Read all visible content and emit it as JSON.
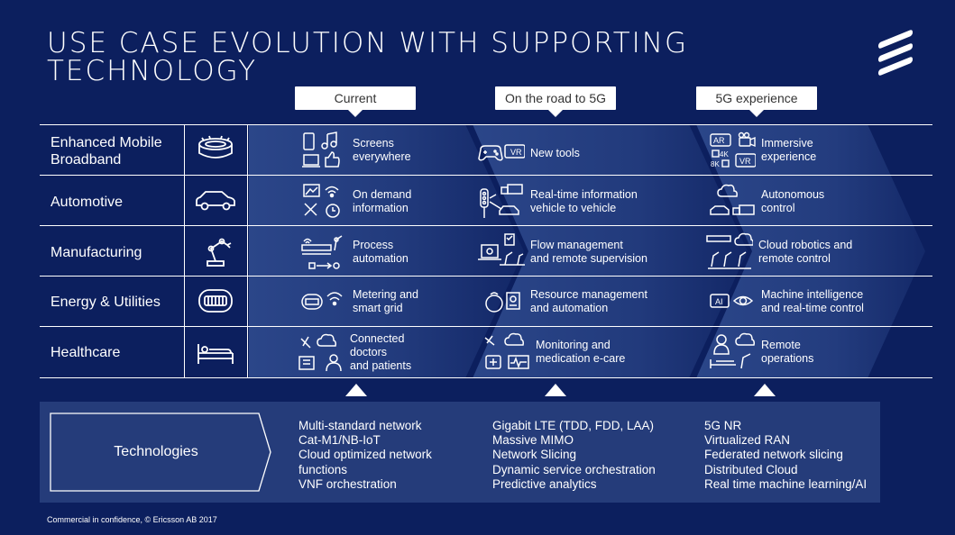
{
  "title_line1": "USE CASE EVOLUTION WITH SUPPORTING",
  "title_line2": "TECHNOLOGY",
  "phases": [
    "Current",
    "On the road to 5G",
    "5G experience"
  ],
  "rows": [
    {
      "label": "Enhanced Mobile\nBroadband",
      "icon": "stadium-icon",
      "cells": [
        {
          "text": "Screens\neverywhere",
          "icon": "devices-icon"
        },
        {
          "text": "New tools",
          "icon": "gamepad-vr-icon"
        },
        {
          "text": "Immersive\nexperience",
          "icon": "ar-4k-vr-icon",
          "badges": [
            "AR",
            "4K",
            "8K",
            "VR"
          ]
        }
      ]
    },
    {
      "label": "Automotive",
      "icon": "car-icon",
      "cells": [
        {
          "text": "On demand\ninformation",
          "icon": "map-wifi-tools-icon"
        },
        {
          "text": "Real-time information\nvehicle to vehicle",
          "icon": "traffic-vehicles-icon"
        },
        {
          "text": "Autonomous\ncontrol",
          "icon": "cloud-vehicles-icon"
        }
      ]
    },
    {
      "label": "Manufacturing",
      "icon": "robot-arm-icon",
      "cells": [
        {
          "text": "Process\nautomation",
          "icon": "conveyor-robot-icon"
        },
        {
          "text": "Flow management\nand remote supervision",
          "icon": "laptop-robots-icon"
        },
        {
          "text": "Cloud robotics and\nremote control",
          "icon": "cloud-robots-icon"
        }
      ]
    },
    {
      "label": "Energy & Utilities",
      "icon": "meter-icon",
      "cells": [
        {
          "text": "Metering and\nsmart grid",
          "icon": "meter-wifi-icon"
        },
        {
          "text": "Resource management\nand automation",
          "icon": "resource-icon"
        },
        {
          "text": "Machine intelligence\nand real-time control",
          "icon": "ai-eye-icon",
          "badges": [
            "AI"
          ]
        }
      ]
    },
    {
      "label": "Healthcare",
      "icon": "hospital-bed-icon",
      "cells": [
        {
          "text": "Connected\ndoctors\nand patients",
          "icon": "doctor-patient-icon"
        },
        {
          "text": "Monitoring and\nmedication e-care",
          "icon": "monitoring-icon"
        },
        {
          "text": "Remote\noperations",
          "icon": "remote-surgery-icon"
        }
      ]
    }
  ],
  "technologies_label": "Technologies",
  "tech_columns": [
    [
      "Multi-standard network",
      "Cat-M1/NB-IoT",
      "Cloud optimized network",
      "functions",
      "VNF orchestration"
    ],
    [
      "Gigabit LTE (TDD, FDD, LAA)",
      "Massive MIMO",
      "Network Slicing",
      "Dynamic service orchestration",
      "Predictive analytics"
    ],
    [
      "5G NR",
      "Virtualized RAN",
      "Federated network slicing",
      "Distributed Cloud",
      "Real time machine learning/AI"
    ]
  ],
  "footer": "Commercial in confidence,  © Ericsson AB 2017",
  "colors": {
    "background": "#0c1f5e",
    "panel": "#253c7a",
    "chevron": "#2b4689",
    "line": "#ffffff"
  }
}
